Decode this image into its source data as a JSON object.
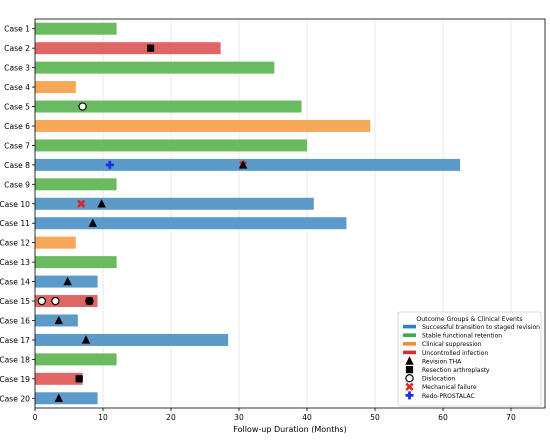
{
  "chart_data": {
    "type": "bar",
    "orientation": "horizontal",
    "title": "",
    "xlabel": "Follow-up Duration (Months)",
    "ylabel": "",
    "xlim": [
      0,
      75
    ],
    "xticks": [
      0,
      10,
      20,
      30,
      40,
      50,
      60,
      70
    ],
    "grid": true,
    "legend_placement": "bottom-right",
    "legend": {
      "title": "Outcome Groups & Clinical Events",
      "groups": [
        {
          "key": "staged",
          "label": "Successful transition to staged revision"
        },
        {
          "key": "stable",
          "label": "Stable functional retention"
        },
        {
          "key": "suppression",
          "label": "Clinical suppression"
        },
        {
          "key": "infection",
          "label": "Uncontrolled infection"
        }
      ],
      "events": [
        {
          "key": "revision_tha",
          "label": "Revision THA"
        },
        {
          "key": "resection",
          "label": "Resection arthroplasty"
        },
        {
          "key": "dislocation",
          "label": "Dislocation"
        },
        {
          "key": "mechanical",
          "label": "Mechanical failure"
        },
        {
          "key": "redo",
          "label": "Redo-PROSTALAC"
        }
      ]
    },
    "colors": {
      "staged": "#5b9ac9",
      "stable": "#6abb5f",
      "suppression": "#f6a75a",
      "infection": "#e06666",
      "legend_staged": "#2f7fc1",
      "legend_stable": "#3ea84a",
      "legend_suppression": "#f58b2f",
      "legend_infection": "#d62f2f",
      "mechanical": "#e8221f",
      "redo": "#1d2fe0"
    },
    "cases": [
      {
        "label": "Case 1",
        "duration": 12,
        "group": "stable",
        "events": []
      },
      {
        "label": "Case 2",
        "duration": 27.3,
        "group": "infection",
        "events": [
          {
            "type": "resection",
            "x": 17
          }
        ]
      },
      {
        "label": "Case 3",
        "duration": 35.2,
        "group": "stable",
        "events": []
      },
      {
        "label": "Case 4",
        "duration": 6,
        "group": "suppression",
        "events": []
      },
      {
        "label": "Case 5",
        "duration": 39.2,
        "group": "stable",
        "events": [
          {
            "type": "dislocation",
            "x": 7
          }
        ]
      },
      {
        "label": "Case 6",
        "duration": 49.3,
        "group": "suppression",
        "events": []
      },
      {
        "label": "Case 7",
        "duration": 40,
        "group": "stable",
        "events": []
      },
      {
        "label": "Case 8",
        "duration": 62.5,
        "group": "staged",
        "events": [
          {
            "type": "redo",
            "x": 11
          },
          {
            "type": "mechanical",
            "x": 30.6
          },
          {
            "type": "revision_tha",
            "x": 30.6
          }
        ]
      },
      {
        "label": "Case 9",
        "duration": 12,
        "group": "stable",
        "events": []
      },
      {
        "label": "Case 10",
        "duration": 41,
        "group": "staged",
        "events": [
          {
            "type": "mechanical",
            "x": 6.8
          },
          {
            "type": "revision_tha",
            "x": 9.8
          }
        ]
      },
      {
        "label": "Case 11",
        "duration": 45.8,
        "group": "staged",
        "events": [
          {
            "type": "revision_tha",
            "x": 8.5
          }
        ]
      },
      {
        "label": "Case 12",
        "duration": 6,
        "group": "suppression",
        "events": []
      },
      {
        "label": "Case 13",
        "duration": 12,
        "group": "stable",
        "events": []
      },
      {
        "label": "Case 14",
        "duration": 9.2,
        "group": "staged",
        "events": [
          {
            "type": "revision_tha",
            "x": 4.8
          }
        ]
      },
      {
        "label": "Case 15",
        "duration": 9.2,
        "group": "infection",
        "events": [
          {
            "type": "dislocation",
            "x": 1
          },
          {
            "type": "dislocation",
            "x": 3
          },
          {
            "type": "dislocation",
            "x": 8
          },
          {
            "type": "resection",
            "x": 8
          }
        ]
      },
      {
        "label": "Case 16",
        "duration": 6.3,
        "group": "staged",
        "events": [
          {
            "type": "revision_tha",
            "x": 3.5
          }
        ]
      },
      {
        "label": "Case 17",
        "duration": 28.4,
        "group": "staged",
        "events": [
          {
            "type": "revision_tha",
            "x": 7.5
          }
        ]
      },
      {
        "label": "Case 18",
        "duration": 12,
        "group": "stable",
        "events": []
      },
      {
        "label": "Case 19",
        "duration": 7,
        "group": "infection",
        "events": [
          {
            "type": "resection",
            "x": 6.5
          }
        ]
      },
      {
        "label": "Case 20",
        "duration": 9.2,
        "group": "staged",
        "events": [
          {
            "type": "revision_tha",
            "x": 3.5
          }
        ]
      }
    ]
  }
}
